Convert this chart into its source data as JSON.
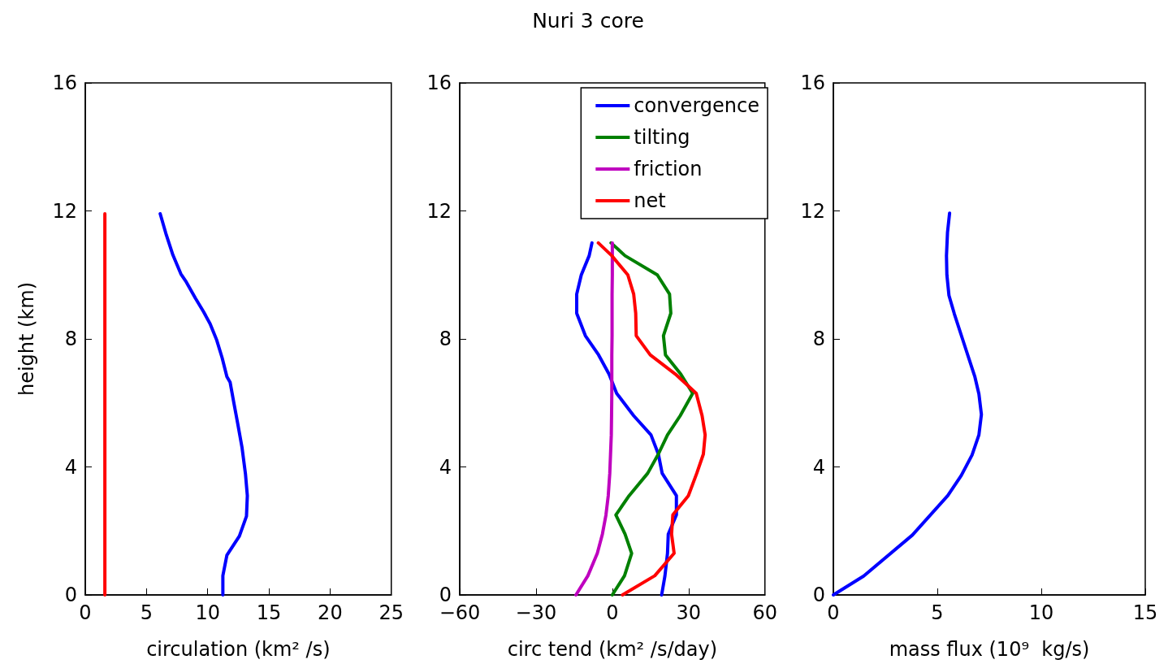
{
  "chart_data": [
    {
      "type": "line",
      "xlabel": "circulation (km² /s)",
      "ylabel": "height (km)",
      "xlim": [
        0,
        25
      ],
      "xticks": [
        0,
        5,
        10,
        15,
        20,
        25
      ],
      "ylim": [
        0,
        16
      ],
      "yticks": [
        0,
        4,
        8,
        12,
        16
      ],
      "grid": false,
      "legend": false,
      "series": [
        {
          "color": "#0000ff",
          "x": [
            11.24,
            11.24,
            11.57,
            12.59,
            13.17,
            13.24,
            13.09,
            12.8,
            12.48,
            12.15,
            11.83,
            11.57,
            11.18,
            10.74,
            10.2,
            9.66,
            9.0,
            8.25,
            7.81,
            7.16,
            6.58,
            6.12
          ],
          "values": [
            0,
            0.6,
            1.24,
            1.84,
            2.46,
            3.1,
            3.77,
            4.62,
            5.3,
            5.98,
            6.65,
            6.82,
            7.41,
            7.96,
            8.47,
            8.85,
            9.27,
            9.78,
            10.03,
            10.62,
            11.3,
            11.91
          ]
        },
        {
          "color": "#ff0000",
          "x": [
            1.6,
            1.6
          ],
          "values": [
            0,
            11.91
          ]
        }
      ]
    },
    {
      "type": "line",
      "title": "Nuri 3 core",
      "xlabel": "circ tend (km² /s/day)",
      "xlim": [
        -60,
        60
      ],
      "xticks": [
        {
          "value": -60,
          "label": "−60"
        },
        {
          "value": -30,
          "label": "−30"
        },
        0,
        30,
        60
      ],
      "ylim": [
        0,
        16
      ],
      "yticks": [
        0,
        4,
        8,
        12,
        16
      ],
      "grid": false,
      "legend": "top right",
      "series": [
        {
          "name": "convergence",
          "color": "#0000ff",
          "x": [
            19.4,
            20.7,
            21.7,
            22.0,
            25.2,
            25.2,
            19.6,
            18.1,
            15.2,
            8.4,
            1.7,
            -1.3,
            -5.4,
            -10.6,
            -14.0,
            -14.0,
            -12.2,
            -9.1,
            -8.0
          ],
          "values": [
            0,
            0.6,
            1.3,
            1.9,
            2.5,
            3.1,
            3.8,
            4.4,
            5.0,
            5.6,
            6.3,
            6.9,
            7.5,
            8.1,
            8.8,
            9.4,
            10.0,
            10.6,
            11.0
          ]
        },
        {
          "name": "tilting",
          "color": "#008000",
          "x": [
            0,
            4.8,
            7.6,
            5.0,
            1.4,
            6.6,
            13.9,
            18.1,
            21.7,
            26.7,
            31.6,
            26.9,
            20.9,
            20.1,
            23.0,
            22.5,
            17.7,
            5.0,
            -0.5
          ],
          "values": [
            0,
            0.6,
            1.3,
            1.9,
            2.5,
            3.1,
            3.8,
            4.4,
            5.0,
            5.6,
            6.3,
            6.9,
            7.5,
            8.1,
            8.8,
            9.4,
            10.0,
            10.6,
            11.0
          ]
        },
        {
          "name": "friction",
          "color": "#bf00bf",
          "x": [
            -14.3,
            -9.6,
            -5.9,
            -3.9,
            -2.5,
            -1.6,
            -1.0,
            -0.7,
            -0.4,
            -0.3,
            -0.2,
            -0.2,
            -0.2,
            -0.1,
            -0.1,
            -0.1,
            0,
            0,
            0
          ],
          "values": [
            0,
            0.6,
            1.3,
            1.9,
            2.5,
            3.1,
            3.8,
            4.4,
            5.0,
            5.6,
            6.3,
            6.9,
            7.5,
            8.1,
            8.8,
            9.4,
            10.0,
            10.6,
            11.0
          ]
        },
        {
          "name": "net",
          "color": "#ff0000",
          "x": [
            4.0,
            16.7,
            24.3,
            23.3,
            23.8,
            29.9,
            33.2,
            35.8,
            36.5,
            35.3,
            33.0,
            24.8,
            14.9,
            9.4,
            9.2,
            8.4,
            6.1,
            -0.2,
            -5.5
          ],
          "values": [
            0,
            0.6,
            1.3,
            1.9,
            2.5,
            3.1,
            3.8,
            4.4,
            5.0,
            5.6,
            6.3,
            6.9,
            7.5,
            8.1,
            8.8,
            9.4,
            10.0,
            10.6,
            11.0
          ]
        }
      ]
    },
    {
      "type": "line",
      "xlabel": "mass flux (10⁹  kg/s)",
      "xlim": [
        0,
        15
      ],
      "xticks": [
        0,
        5,
        10,
        15
      ],
      "ylim": [
        0,
        16
      ],
      "yticks": [
        0,
        4,
        8,
        12,
        16
      ],
      "grid": false,
      "legend": false,
      "series": [
        {
          "color": "#0000ff",
          "x": [
            0,
            1.46,
            3.8,
            5.5,
            6.15,
            6.67,
            7.0,
            7.12,
            7.0,
            6.8,
            6.54,
            6.21,
            5.82,
            5.56,
            5.46,
            5.44,
            5.49,
            5.59
          ],
          "values": [
            0,
            0.59,
            1.87,
            3.1,
            3.73,
            4.37,
            5.0,
            5.64,
            6.28,
            6.83,
            7.34,
            8.0,
            8.78,
            9.36,
            10.0,
            10.6,
            11.33,
            11.93
          ]
        }
      ]
    }
  ]
}
